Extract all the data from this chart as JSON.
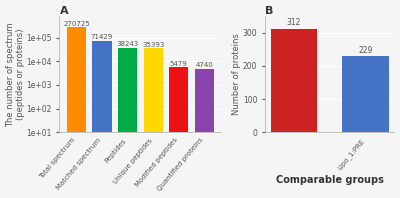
{
  "chart_a": {
    "categories": [
      "Total spectrum",
      "Matched spectrum",
      "Peptides",
      "Unique peptides",
      "Modified peptides",
      "Quantified proteins"
    ],
    "values": [
      270725,
      71429,
      38243,
      35393,
      5479,
      4740
    ],
    "colors": [
      "#FF8C00",
      "#4472C4",
      "#00AA44",
      "#FFD700",
      "#EE1111",
      "#8844AA"
    ],
    "ylabel": "The number of spectrum\n(peptides or proteins)",
    "title": "A",
    "yticks": [
      10,
      100,
      1000,
      10000,
      100000
    ],
    "ytick_labels": [
      "1e+01",
      "1e+02",
      "1e+03",
      "1e+04",
      "1e+05"
    ],
    "ylim": [
      10,
      800000
    ]
  },
  "chart_b": {
    "categories": [
      "",
      "Lipo_1:PRE"
    ],
    "values": [
      312,
      229
    ],
    "colors": [
      "#CC2222",
      "#4472C4"
    ],
    "ylabel": "Number of proteins",
    "xlabel": "Comparable groups",
    "title": "B",
    "ylim": [
      0,
      350
    ],
    "yticks": [
      0,
      100,
      200,
      300
    ]
  },
  "background_color": "#f5f5f5",
  "plot_bg": "#f5f5f5",
  "grid_color": "#ffffff",
  "label_fontsize": 6,
  "tick_fontsize": 5.5,
  "annotation_fontsize": 5.5,
  "title_fontsize": 8
}
